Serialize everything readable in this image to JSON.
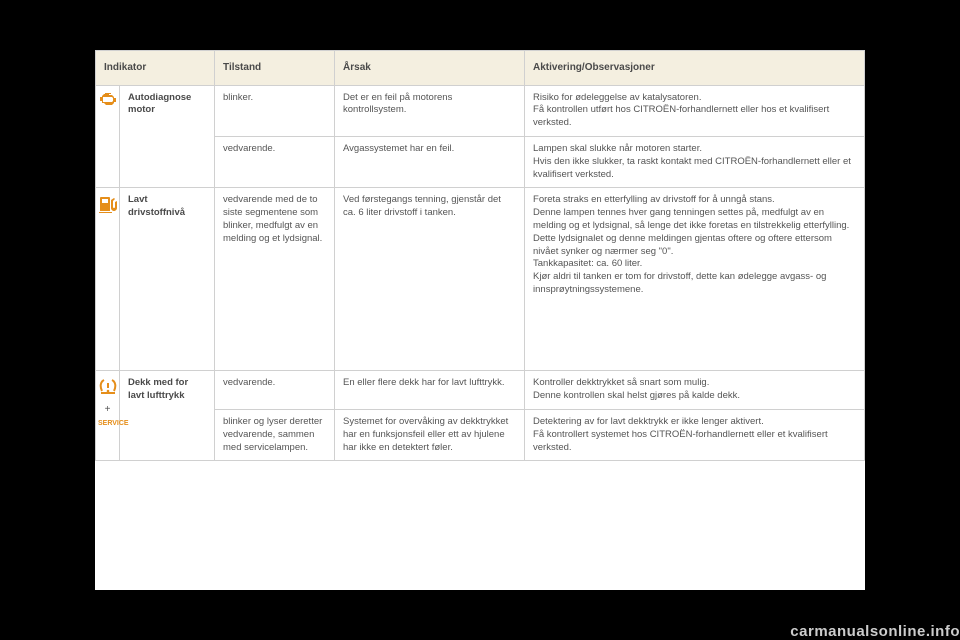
{
  "header": {
    "indikator": "Indikator",
    "tilstand": "Tilstand",
    "arsak": "Årsak",
    "aktivering": "Aktivering/Observasjoner"
  },
  "rows": [
    {
      "icon": "engine-icon",
      "name_l1": "Autodiagnose",
      "name_l2": "motor",
      "sub": [
        {
          "tilstand": "blinker.",
          "arsak": "Det er en feil på motorens kontrollsystem.",
          "aktivering": "Risiko for ødeleggelse av katalysatoren.\nFå kontrollen utført hos CITROËN-forhandlernett eller hos et kvalifisert verksted."
        },
        {
          "tilstand": "vedvarende.",
          "arsak": "Avgassystemet har en feil.",
          "aktivering": "Lampen skal slukke når motoren starter.\nHvis den ikke slukker, ta raskt kontakt med CITROËN-forhandlernett eller et kvalifisert verksted."
        }
      ]
    },
    {
      "icon": "fuel-icon",
      "name_l1": "Lavt",
      "name_l2": "drivstoffnivå",
      "sub": [
        {
          "tilstand": "vedvarende med de to siste segmentene som blinker, medfulgt av en melding og et lydsignal.",
          "arsak": "Ved førstegangs tenning, gjenstår det ca. 6 liter drivstoff i tanken.",
          "aktivering": "Foreta straks en etterfylling av drivstoff for å unngå stans.\nDenne lampen tennes hver gang tenningen settes på, medfulgt av en melding og et lydsignal, så lenge det ikke foretas en tilstrekkelig etterfylling.\nDette lydsignalet og denne meldingen gjentas oftere og oftere ettersom nivået synker og nærmer seg \"0\".\nTankkapasitet: ca. 60 liter.\nKjør aldri til tanken er tom for drivstoff, dette kan ødelegge avgass- og innsprøytningssystemene."
        }
      ]
    },
    {
      "icon": "tire-icon",
      "name_l1": "Dekk med for",
      "name_l2": "lavt lufttrykk",
      "service_label": "SERVICE",
      "sub": [
        {
          "tilstand": "vedvarende.",
          "arsak": "En eller flere dekk har for lavt lufttrykk.",
          "aktivering": "Kontroller dekktrykket så snart som mulig.\nDenne kontrollen skal helst gjøres på kalde dekk."
        },
        {
          "tilstand": "blinker og lyser deretter vedvarende, sammen med servicelampen.",
          "arsak": "Systemet for overvåking av dekktrykket har en funksjonsfeil eller ett av hjulene har ikke en detektert føler.",
          "aktivering": "Detektering av for lavt dekktrykk er ikke lenger aktivert.\nFå kontrollert systemet hos CITROËN-forhandlernett eller et kvalifisert verksted."
        }
      ]
    }
  ],
  "watermark": "carmanualsonline.info",
  "colors": {
    "icon_orange": "#e58e1a",
    "header_bg": "#f4efe0",
    "border": "#d0d0d0",
    "text": "#555555"
  }
}
